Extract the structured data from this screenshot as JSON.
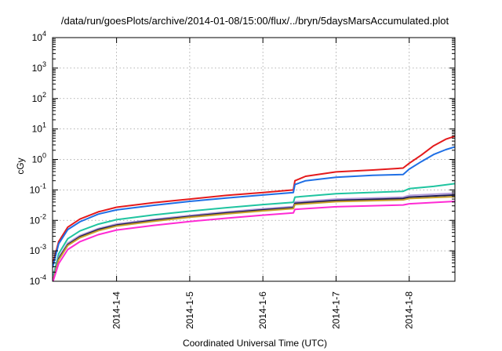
{
  "chart_data": {
    "type": "line",
    "title": "/data/run/goesPlots/archive/2014-01-08/15:00/flux/../bryn/5daysMarsAccumulated.plot",
    "xlabel": "Coordinated Universal Time (UTC)",
    "ylabel": "cGy",
    "yscale": "log",
    "ylim": [
      0.0001,
      10000
    ],
    "xlim": [
      "2014-01-03 03:00",
      "2014-01-08 15:00"
    ],
    "y_ticks": [
      {
        "value": 0.0001,
        "base": "10",
        "exp": "-4"
      },
      {
        "value": 0.001,
        "base": "10",
        "exp": "-3"
      },
      {
        "value": 0.01,
        "base": "10",
        "exp": "-2"
      },
      {
        "value": 0.1,
        "base": "10",
        "exp": "-1"
      },
      {
        "value": 1,
        "base": "10",
        "exp": "0"
      },
      {
        "value": 10,
        "base": "10",
        "exp": "1"
      },
      {
        "value": 100,
        "base": "10",
        "exp": "2"
      },
      {
        "value": 1000,
        "base": "10",
        "exp": "3"
      },
      {
        "value": 10000,
        "base": "10",
        "exp": "4"
      }
    ],
    "x_ticks": [
      "2014-1-4",
      "2014-1-5",
      "2014-1-6",
      "2014-1-7",
      "2014-1-8"
    ],
    "x_tick_dates": [
      "2014-01-04 00:00",
      "2014-01-05 00:00",
      "2014-01-06 00:00",
      "2014-01-07 00:00",
      "2014-01-08 00:00"
    ],
    "grid": true,
    "series": [
      {
        "color": "#e41a1c",
        "points": [
          [
            "2014-01-03 03:00",
            0.00035
          ],
          [
            "2014-01-03 05:00",
            0.002
          ],
          [
            "2014-01-03 08:00",
            0.006
          ],
          [
            "2014-01-03 12:00",
            0.011
          ],
          [
            "2014-01-03 18:00",
            0.019
          ],
          [
            "2014-01-04 00:00",
            0.027
          ],
          [
            "2014-01-04 12:00",
            0.038
          ],
          [
            "2014-01-05 00:00",
            0.05
          ],
          [
            "2014-01-05 12:00",
            0.066
          ],
          [
            "2014-01-06 00:00",
            0.082
          ],
          [
            "2014-01-06 10:00",
            0.1
          ],
          [
            "2014-01-06 10:30",
            0.2
          ],
          [
            "2014-01-06 14:00",
            0.28
          ],
          [
            "2014-01-07 00:00",
            0.39
          ],
          [
            "2014-01-07 12:00",
            0.45
          ],
          [
            "2014-01-07 22:00",
            0.52
          ],
          [
            "2014-01-08 00:00",
            0.75
          ],
          [
            "2014-01-08 04:00",
            1.4
          ],
          [
            "2014-01-08 08:00",
            2.8
          ],
          [
            "2014-01-08 12:00",
            4.6
          ],
          [
            "2014-01-08 15:00",
            5.8
          ]
        ]
      },
      {
        "color": "#1f6fe5",
        "points": [
          [
            "2014-01-03 03:00",
            0.00028
          ],
          [
            "2014-01-03 05:00",
            0.0017
          ],
          [
            "2014-01-03 08:00",
            0.005
          ],
          [
            "2014-01-03 12:00",
            0.009
          ],
          [
            "2014-01-03 18:00",
            0.016
          ],
          [
            "2014-01-04 00:00",
            0.022
          ],
          [
            "2014-01-04 12:00",
            0.031
          ],
          [
            "2014-01-05 00:00",
            0.042
          ],
          [
            "2014-01-05 12:00",
            0.054
          ],
          [
            "2014-01-06 00:00",
            0.068
          ],
          [
            "2014-01-06 10:00",
            0.082
          ],
          [
            "2014-01-06 10:30",
            0.15
          ],
          [
            "2014-01-06 14:00",
            0.2
          ],
          [
            "2014-01-07 00:00",
            0.26
          ],
          [
            "2014-01-07 12:00",
            0.3
          ],
          [
            "2014-01-07 22:00",
            0.32
          ],
          [
            "2014-01-08 00:00",
            0.48
          ],
          [
            "2014-01-08 04:00",
            0.85
          ],
          [
            "2014-01-08 08:00",
            1.45
          ],
          [
            "2014-01-08 12:00",
            2.1
          ],
          [
            "2014-01-08 15:00",
            2.6
          ]
        ]
      },
      {
        "color": "#1fc4a0",
        "points": [
          [
            "2014-01-03 03:00",
            0.00012
          ],
          [
            "2014-01-03 05:00",
            0.0008
          ],
          [
            "2014-01-03 08:00",
            0.0025
          ],
          [
            "2014-01-03 12:00",
            0.0045
          ],
          [
            "2014-01-03 18:00",
            0.0075
          ],
          [
            "2014-01-04 00:00",
            0.0105
          ],
          [
            "2014-01-04 12:00",
            0.015
          ],
          [
            "2014-01-05 00:00",
            0.02
          ],
          [
            "2014-01-05 12:00",
            0.026
          ],
          [
            "2014-01-06 00:00",
            0.033
          ],
          [
            "2014-01-06 10:00",
            0.039
          ],
          [
            "2014-01-06 10:30",
            0.058
          ],
          [
            "2014-01-07 00:00",
            0.075
          ],
          [
            "2014-01-07 22:00",
            0.09
          ],
          [
            "2014-01-08 00:00",
            0.11
          ],
          [
            "2014-01-08 08:00",
            0.13
          ],
          [
            "2014-01-08 15:00",
            0.16
          ]
        ]
      },
      {
        "color": "#b39ddb",
        "points": [
          [
            "2014-01-03 03:00",
            0.0001
          ],
          [
            "2014-01-03 05:00",
            0.0006
          ],
          [
            "2014-01-03 08:00",
            0.0018
          ],
          [
            "2014-01-03 12:00",
            0.0032
          ],
          [
            "2014-01-03 18:00",
            0.0054
          ],
          [
            "2014-01-04 00:00",
            0.0076
          ],
          [
            "2014-01-04 12:00",
            0.0108
          ],
          [
            "2014-01-05 00:00",
            0.0145
          ],
          [
            "2014-01-05 12:00",
            0.019
          ],
          [
            "2014-01-06 00:00",
            0.024
          ],
          [
            "2014-01-06 10:00",
            0.0285
          ],
          [
            "2014-01-06 10:30",
            0.04
          ],
          [
            "2014-01-07 00:00",
            0.05
          ],
          [
            "2014-01-07 22:00",
            0.058
          ],
          [
            "2014-01-08 00:00",
            0.066
          ],
          [
            "2014-01-08 15:00",
            0.078
          ]
        ]
      },
      {
        "color": "#1a1a55",
        "points": [
          [
            "2014-01-03 03:00",
            9e-05
          ],
          [
            "2014-01-03 05:00",
            0.00055
          ],
          [
            "2014-01-03 08:00",
            0.0016
          ],
          [
            "2014-01-03 12:00",
            0.0029
          ],
          [
            "2014-01-03 18:00",
            0.005
          ],
          [
            "2014-01-04 00:00",
            0.007
          ],
          [
            "2014-01-04 12:00",
            0.01
          ],
          [
            "2014-01-05 00:00",
            0.0135
          ],
          [
            "2014-01-05 12:00",
            0.0175
          ],
          [
            "2014-01-06 00:00",
            0.022
          ],
          [
            "2014-01-06 10:00",
            0.026
          ],
          [
            "2014-01-06 10:30",
            0.036
          ],
          [
            "2014-01-07 00:00",
            0.045
          ],
          [
            "2014-01-07 22:00",
            0.052
          ],
          [
            "2014-01-08 00:00",
            0.058
          ],
          [
            "2014-01-08 15:00",
            0.068
          ]
        ]
      },
      {
        "color": "#c8a02a",
        "points": [
          [
            "2014-01-03 03:00",
            8e-05
          ],
          [
            "2014-01-03 05:00",
            0.0005
          ],
          [
            "2014-01-03 08:00",
            0.0015
          ],
          [
            "2014-01-03 12:00",
            0.0027
          ],
          [
            "2014-01-03 18:00",
            0.0046
          ],
          [
            "2014-01-04 00:00",
            0.0065
          ],
          [
            "2014-01-04 12:00",
            0.0093
          ],
          [
            "2014-01-05 00:00",
            0.0126
          ],
          [
            "2014-01-05 12:00",
            0.0163
          ],
          [
            "2014-01-06 00:00",
            0.0205
          ],
          [
            "2014-01-06 10:00",
            0.0242
          ],
          [
            "2014-01-06 10:30",
            0.033
          ],
          [
            "2014-01-07 00:00",
            0.041
          ],
          [
            "2014-01-07 22:00",
            0.047
          ],
          [
            "2014-01-08 00:00",
            0.052
          ],
          [
            "2014-01-08 15:00",
            0.06
          ]
        ]
      },
      {
        "color": "#ff2ad4",
        "points": [
          [
            "2014-01-03 03:00",
            6e-05
          ],
          [
            "2014-01-03 05:00",
            0.00038
          ],
          [
            "2014-01-03 08:00",
            0.0011
          ],
          [
            "2014-01-03 12:00",
            0.002
          ],
          [
            "2014-01-03 18:00",
            0.0034
          ],
          [
            "2014-01-04 00:00",
            0.0048
          ],
          [
            "2014-01-04 12:00",
            0.0068
          ],
          [
            "2014-01-05 00:00",
            0.0092
          ],
          [
            "2014-01-05 12:00",
            0.0118
          ],
          [
            "2014-01-06 00:00",
            0.0148
          ],
          [
            "2014-01-06 10:00",
            0.0175
          ],
          [
            "2014-01-06 10:30",
            0.023
          ],
          [
            "2014-01-07 00:00",
            0.028
          ],
          [
            "2014-01-07 22:00",
            0.032
          ],
          [
            "2014-01-08 00:00",
            0.035
          ],
          [
            "2014-01-08 15:00",
            0.042
          ]
        ]
      }
    ]
  }
}
